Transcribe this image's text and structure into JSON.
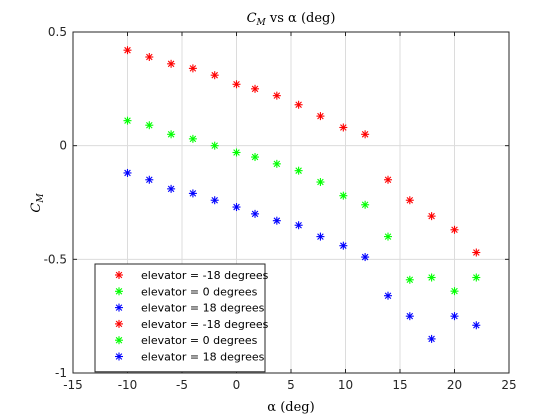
{
  "chart_data": {
    "type": "scatter",
    "title": {
      "main": "C",
      "sub": "M",
      "rest": " vs α (deg)"
    },
    "xlabel": "α (deg)",
    "ylabel": {
      "main": "C",
      "sub": "M"
    },
    "xlim": [
      -15,
      25
    ],
    "ylim": [
      -1,
      0.5
    ],
    "xticks": [
      -15,
      -10,
      -5,
      0,
      5,
      10,
      15,
      20,
      25
    ],
    "xtick_labels": [
      "-15",
      "-10",
      "-5",
      "0",
      "5",
      "10",
      "15",
      "20",
      "25"
    ],
    "yticks": [
      -1,
      -0.5,
      0,
      0.5
    ],
    "ytick_labels": [
      "-1",
      "-0.5",
      "0",
      "0.5"
    ],
    "grid": true,
    "legend_location": "bottom-left",
    "marker": "*",
    "series": [
      {
        "name": "elevator = -18 degrees",
        "color": "#ff0000",
        "x": [
          -10,
          -8,
          -6,
          -4,
          -2,
          0,
          1.7,
          3.7,
          5.7,
          7.7,
          9.8,
          11.8
        ],
        "y": [
          0.42,
          0.39,
          0.36,
          0.34,
          0.31,
          0.27,
          0.25,
          0.22,
          0.18,
          0.13,
          0.08,
          0.05
        ]
      },
      {
        "name": "elevator = 0 degrees",
        "color": "#00ff00",
        "x": [
          -10,
          -8,
          -6,
          -4,
          -2,
          0,
          1.7,
          3.7,
          5.7,
          7.7,
          9.8,
          11.8
        ],
        "y": [
          0.11,
          0.09,
          0.05,
          0.03,
          0.0,
          -0.03,
          -0.05,
          -0.08,
          -0.11,
          -0.16,
          -0.22,
          -0.26
        ]
      },
      {
        "name": "elevator = 18 degrees",
        "color": "#0000ff",
        "x": [
          -10,
          -8,
          -6,
          -4,
          -2,
          0,
          1.7,
          3.7,
          5.7,
          7.7,
          9.8,
          11.8
        ],
        "y": [
          -0.12,
          -0.15,
          -0.19,
          -0.21,
          -0.24,
          -0.27,
          -0.3,
          -0.33,
          -0.35,
          -0.4,
          -0.44,
          -0.49
        ]
      },
      {
        "name": "elevator = -18 degrees",
        "color": "#ff0000",
        "x": [
          13.9,
          15.9,
          17.9,
          20.0,
          22.0
        ],
        "y": [
          -0.15,
          -0.24,
          -0.31,
          -0.37,
          -0.47
        ]
      },
      {
        "name": "elevator = 0 degrees",
        "color": "#00ff00",
        "x": [
          13.9,
          15.9,
          17.9,
          20.0,
          22.0
        ],
        "y": [
          -0.4,
          -0.59,
          -0.58,
          -0.64,
          -0.58
        ]
      },
      {
        "name": "elevator = 18 degrees",
        "color": "#0000ff",
        "x": [
          13.9,
          15.9,
          17.9,
          20.0,
          22.0
        ],
        "y": [
          -0.66,
          -0.75,
          -0.85,
          -0.75,
          -0.79
        ]
      }
    ]
  }
}
